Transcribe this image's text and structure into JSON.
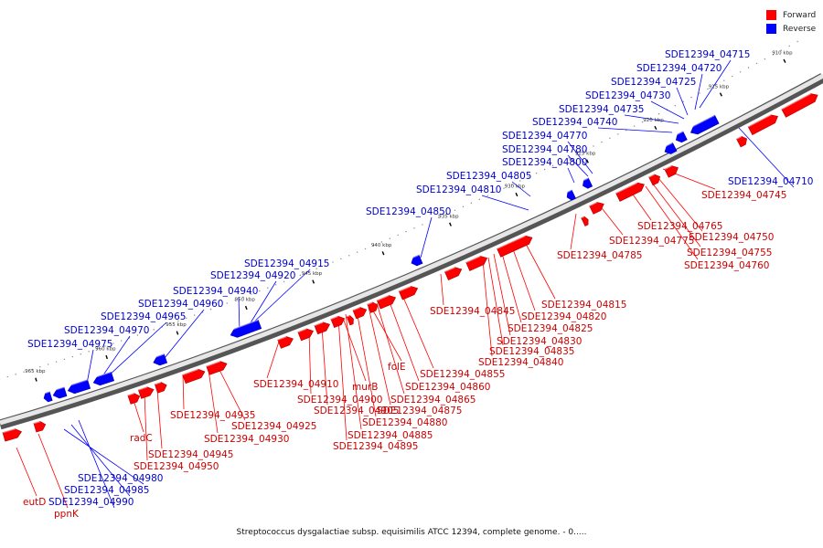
{
  "legend": {
    "forward": "Forward",
    "reverse": "Reverse",
    "forward_color": "#ff0000",
    "reverse_color": "#0000ff"
  },
  "footer": "Streptococcus dysgalactiae subsp. equisimilis ATCC 12394, complete genome. - 0.....",
  "ticks": [
    "910 kbp",
    "915 kbp",
    "920 kbp",
    "925 kbp",
    "930 kbp",
    "935 kbp",
    "940 kbp",
    "945 kbp",
    "950 kbp",
    "955 kbp",
    "960 kbp",
    "965 kbp"
  ],
  "reverse_labels": [
    "SDE12394_04715",
    "SDE12394_04720",
    "SDE12394_04725",
    "SDE12394_04730",
    "SDE12394_04735",
    "SDE12394_04740",
    "SDE12394_04770",
    "SDE12394_04780",
    "SDE12394_04800",
    "SDE12394_04805",
    "SDE12394_04810",
    "SDE12394_04850",
    "SDE12394_04915",
    "SDE12394_04920",
    "SDE12394_04940",
    "SDE12394_04960",
    "SDE12394_04965",
    "SDE12394_04970",
    "SDE12394_04975",
    "SDE12394_04710",
    "SDE12394_04980",
    "SDE12394_04985",
    "SDE12394_04990"
  ],
  "forward_labels": [
    "SDE12394_04745",
    "SDE12394_04750",
    "SDE12394_04755",
    "SDE12394_04760",
    "SDE12394_04765",
    "SDE12394_04775",
    "SDE12394_04785",
    "SDE12394_04815",
    "SDE12394_04820",
    "SDE12394_04825",
    "SDE12394_04830",
    "SDE12394_04835",
    "SDE12394_04840",
    "SDE12394_04845",
    "SDE12394_04855",
    "SDE12394_04860",
    "SDE12394_04865",
    "SDE12394_04875",
    "SDE12394_04880",
    "SDE12394_04885",
    "SDE12394_04895",
    "SDE12394_04900",
    "SDE12394_04905",
    "SDE12394_04910",
    "SDE12394_04925",
    "SDE12394_04930",
    "SDE12394_04935",
    "SDE12394_04945",
    "SDE12394_04950",
    "folE",
    "murB",
    "radC",
    "eutD",
    "ppnK"
  ]
}
